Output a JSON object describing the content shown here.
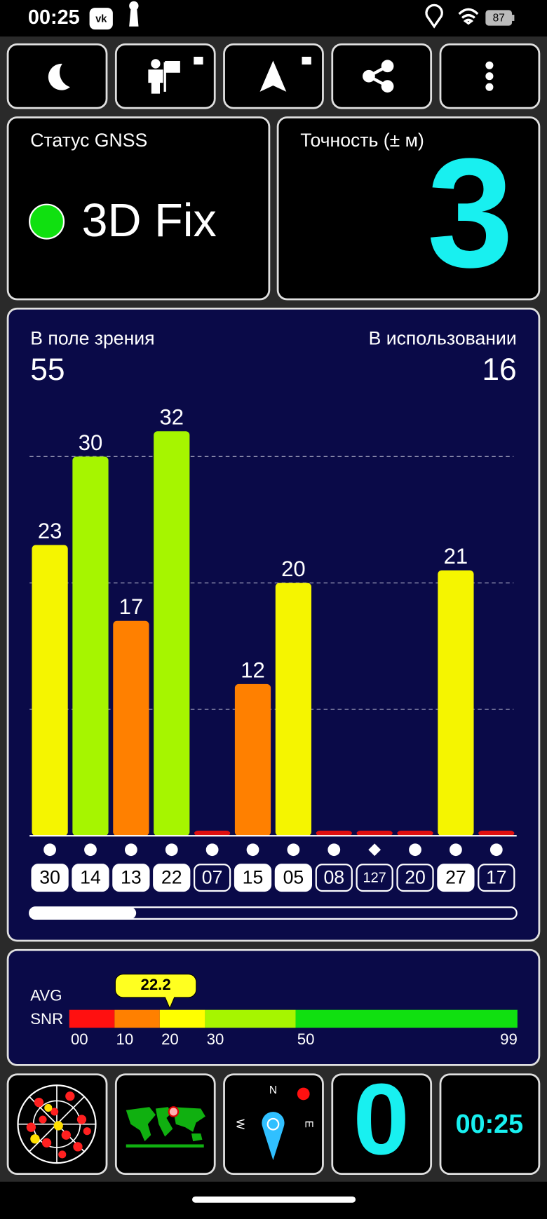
{
  "status_bar": {
    "time": "00:25",
    "battery": "87"
  },
  "gnss_status": {
    "label": "Статус GNSS",
    "value": "3D Fix"
  },
  "accuracy": {
    "label": "Точность (± м)",
    "value": "3"
  },
  "satellites": {
    "in_view_label": "В поле зрения",
    "in_view": "55",
    "in_use_label": "В использовании",
    "in_use": "16"
  },
  "chart_data": {
    "type": "bar",
    "categories": [
      "30",
      "14",
      "13",
      "22",
      "07",
      "15",
      "05",
      "08",
      "127",
      "20",
      "27",
      "17"
    ],
    "values": [
      23,
      30,
      17,
      32,
      0.4,
      12,
      20,
      0.4,
      0.4,
      0.4,
      21,
      0.4
    ],
    "colors": [
      "#f5f500",
      "#a6f500",
      "#ff8000",
      "#a6f500",
      "#e01010",
      "#ff8000",
      "#f5f500",
      "#e01010",
      "#e01010",
      "#e01010",
      "#f5f500",
      "#e01010"
    ],
    "symbols": [
      "circle",
      "circle",
      "circle",
      "circle",
      "circle",
      "circle",
      "circle",
      "circle",
      "diamond",
      "circle",
      "circle",
      "circle"
    ],
    "in_use": [
      true,
      true,
      true,
      true,
      false,
      true,
      true,
      false,
      false,
      false,
      true,
      false
    ],
    "ylim": [
      0,
      35
    ],
    "yticks": [
      10,
      20,
      30
    ],
    "grid": true
  },
  "snr_scale": {
    "labels": [
      "AVG",
      "SNR"
    ],
    "avg": 22.2,
    "xlim": [
      0,
      99
    ],
    "ticks": [
      {
        "value": 0,
        "label": "00"
      },
      10,
      20,
      30,
      50,
      99
    ],
    "segment_colors": [
      "#ff1010",
      "#ff8000",
      "#ffff00",
      "#a6f500",
      "#10e010"
    ]
  },
  "tiles": {
    "compass": [
      "N",
      "W",
      "E"
    ],
    "speed": "0",
    "clock": "00:25"
  }
}
